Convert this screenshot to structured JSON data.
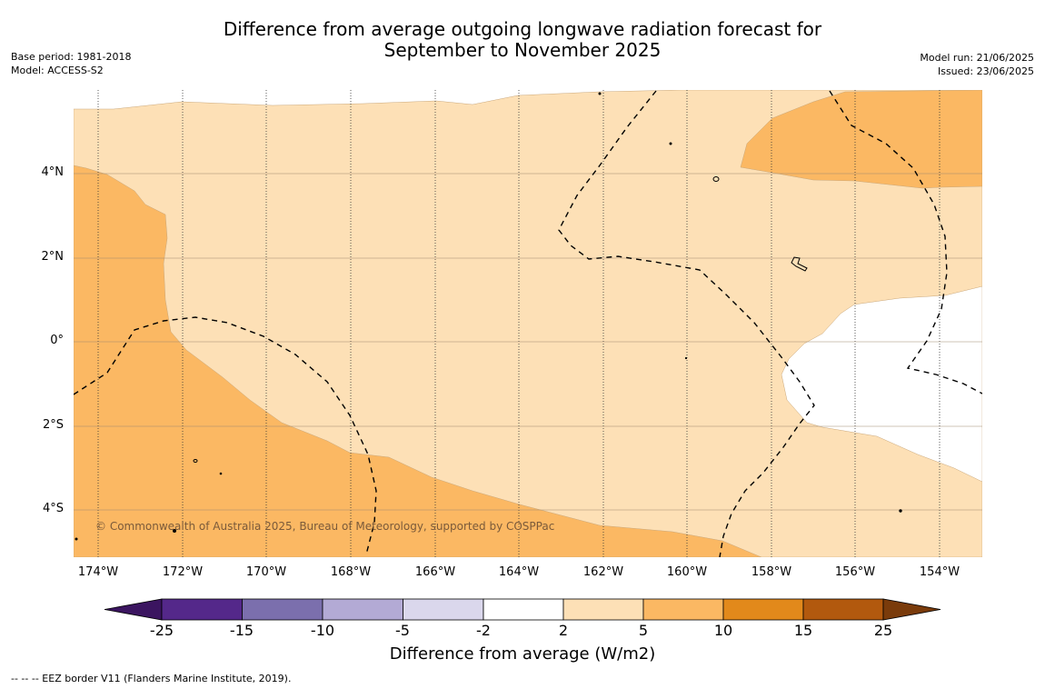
{
  "title_line1": "Difference from average outgoing longwave radiation forecast for",
  "title_line2": "September to November 2025",
  "base_period": "Base period: 1981-2018",
  "model": "Model: ACCESS-S2",
  "model_run": "Model run: 21/06/2025",
  "issued": "Issued: 23/06/2025",
  "copyright": "© Commonwealth of Australia 2025, Bureau of Meteorology, supported by COSPPac",
  "footnote": "--  --  -- EEZ border V11 (Flanders Marine Institute, 2019).",
  "lat_ticks": [
    "4°N",
    "2°N",
    "0°",
    "2°S",
    "4°S"
  ],
  "lon_ticks": [
    "174°W",
    "172°W",
    "170°W",
    "168°W",
    "166°W",
    "164°W",
    "162°W",
    "160°W",
    "158°W",
    "156°W",
    "154°W"
  ],
  "colorbar": {
    "label": "Difference from average (W/m2)",
    "ticks": [
      "-25",
      "-15",
      "-10",
      "-5",
      "-2",
      "2",
      "5",
      "10",
      "15",
      "25"
    ],
    "colors": [
      "#3b1560",
      "#54288a",
      "#7b6fad",
      "#b3aad5",
      "#dad7ec",
      "#ffffff",
      "#fde0b6",
      "#fbb863",
      "#e2891b",
      "#b2590e",
      "#7a3b0b"
    ]
  }
}
